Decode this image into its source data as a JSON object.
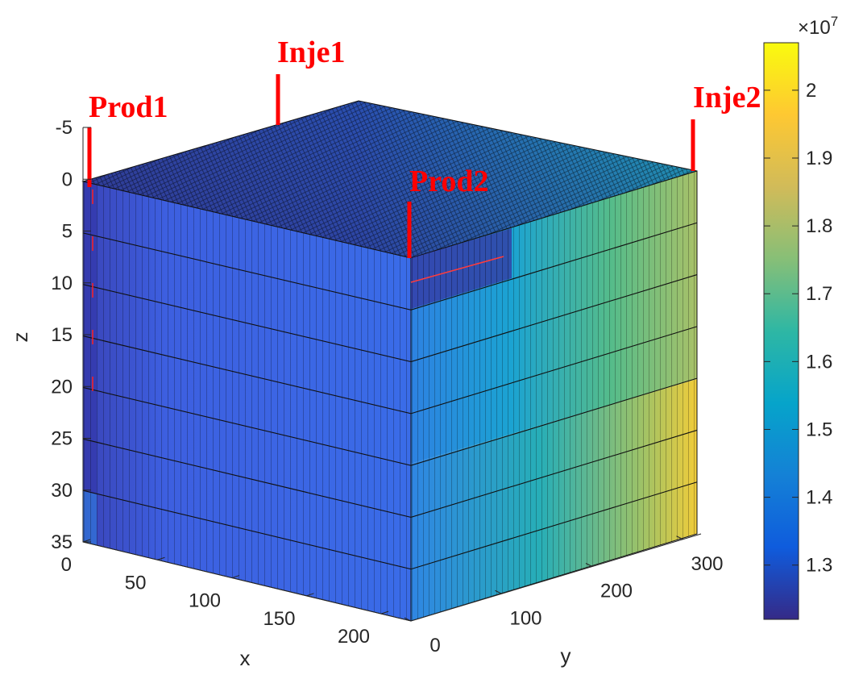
{
  "chart_data": {
    "type": "heatmap",
    "title": "",
    "axes": {
      "x": {
        "label": "x",
        "ticks": [
          "0",
          "50",
          "100",
          "150",
          "200"
        ],
        "range": [
          0,
          220
        ]
      },
      "y": {
        "label": "y",
        "ticks": [
          "0",
          "100",
          "200",
          "300"
        ],
        "range": [
          0,
          320
        ]
      },
      "z": {
        "label": "z",
        "ticks": [
          "-5",
          "0",
          "5",
          "10",
          "15",
          "20",
          "25",
          "30",
          "35"
        ],
        "range": [
          -5,
          35
        ],
        "reversed": true
      }
    },
    "grid": false,
    "colorbar": {
      "position": "right",
      "exponent_label": "×10",
      "exponent": "7",
      "ticks": [
        "1.3",
        "1.4",
        "1.5",
        "1.6",
        "1.7",
        "1.8",
        "1.9",
        "2"
      ],
      "range": [
        1.22,
        2.07
      ],
      "colormap": "parula",
      "colors": [
        "#352a87",
        "#0f5cdd",
        "#1481d6",
        "#06a4ca",
        "#2eb7a4",
        "#87bf77",
        "#d1bb59",
        "#fec832",
        "#f9fb0e"
      ]
    },
    "wells": [
      {
        "name": "Prod1",
        "type": "producer",
        "color": "#ff0000"
      },
      {
        "name": "Inje1",
        "type": "injector",
        "color": "#ff0000"
      },
      {
        "name": "Prod2",
        "type": "producer",
        "color": "#ff0000"
      },
      {
        "name": "Inje2",
        "type": "injector",
        "color": "#ff0000"
      }
    ],
    "layers": 7
  }
}
